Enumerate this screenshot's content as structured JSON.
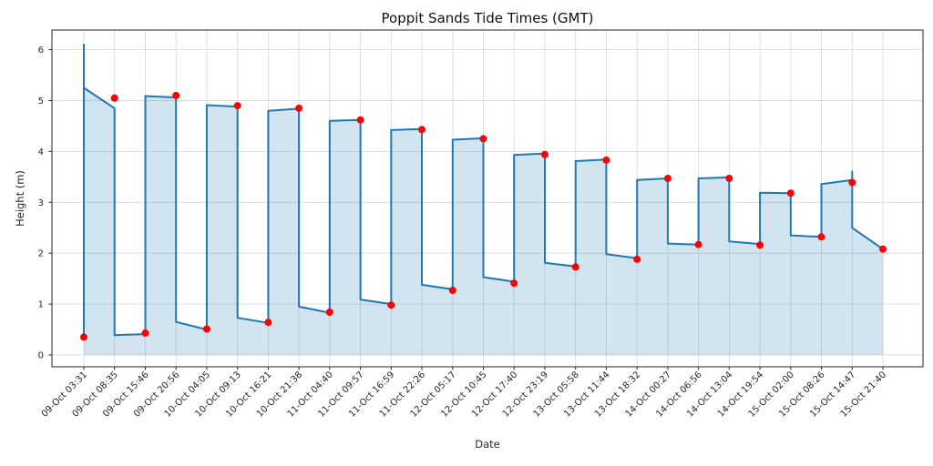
{
  "chart_data": {
    "type": "line",
    "title": "Poppit Sands Tide Times (GMT)",
    "xlabel": "Date",
    "ylabel": "Height (m)",
    "yticks": [
      0,
      1,
      2,
      3,
      4,
      5,
      6
    ],
    "ylim": [
      -0.25,
      6.4
    ],
    "grid": true,
    "legend_position": "none",
    "marker_style": "filled-circle",
    "events": [
      {
        "label": "09-Oct 03:31",
        "height": 0.35,
        "type": "low"
      },
      {
        "label": "09-Oct 08:35",
        "height": 5.05,
        "type": "high"
      },
      {
        "label": "09-Oct 15:46",
        "height": 0.43,
        "type": "low"
      },
      {
        "label": "09-Oct 20:56",
        "height": 5.1,
        "type": "high"
      },
      {
        "label": "10-Oct 04:05",
        "height": 0.51,
        "type": "low"
      },
      {
        "label": "10-Oct 09:13",
        "height": 4.9,
        "type": "high"
      },
      {
        "label": "10-Oct 16:21",
        "height": 0.64,
        "type": "low"
      },
      {
        "label": "10-Oct 21:38",
        "height": 4.85,
        "type": "high"
      },
      {
        "label": "11-Oct 04:40",
        "height": 0.84,
        "type": "low"
      },
      {
        "label": "11-Oct 09:57",
        "height": 4.62,
        "type": "high"
      },
      {
        "label": "11-Oct 16:59",
        "height": 0.98,
        "type": "low"
      },
      {
        "label": "11-Oct 22:26",
        "height": 4.43,
        "type": "high"
      },
      {
        "label": "12-Oct 05:17",
        "height": 1.27,
        "type": "low"
      },
      {
        "label": "12-Oct 10:45",
        "height": 4.25,
        "type": "high"
      },
      {
        "label": "12-Oct 17:40",
        "height": 1.41,
        "type": "low"
      },
      {
        "label": "12-Oct 23:19",
        "height": 3.94,
        "type": "high"
      },
      {
        "label": "13-Oct 05:58",
        "height": 1.73,
        "type": "low"
      },
      {
        "label": "13-Oct 11:44",
        "height": 3.83,
        "type": "high"
      },
      {
        "label": "13-Oct 18:32",
        "height": 1.88,
        "type": "low"
      },
      {
        "label": "14-Oct 00:27",
        "height": 3.47,
        "type": "high"
      },
      {
        "label": "14-Oct 06:56",
        "height": 2.17,
        "type": "low"
      },
      {
        "label": "14-Oct 13:04",
        "height": 3.47,
        "type": "high"
      },
      {
        "label": "14-Oct 19:54",
        "height": 2.16,
        "type": "low"
      },
      {
        "label": "15-Oct 02:00",
        "height": 3.18,
        "type": "high"
      },
      {
        "label": "15-Oct 08:26",
        "height": 2.32,
        "type": "low"
      },
      {
        "label": "15-Oct 14:47",
        "height": 3.39,
        "type": "high"
      },
      {
        "label": "15-Oct 21:40",
        "height": 2.08,
        "type": "low"
      }
    ],
    "line_vertices": [
      [
        0,
        0.35
      ],
      [
        0,
        6.1
      ],
      [
        0,
        5.25
      ],
      [
        1,
        4.85
      ],
      [
        1,
        0.39
      ],
      [
        2,
        0.41
      ],
      [
        2,
        5.09
      ],
      [
        3,
        5.06
      ],
      [
        3,
        0.65
      ],
      [
        4,
        0.5
      ],
      [
        4,
        4.91
      ],
      [
        5,
        4.88
      ],
      [
        5,
        0.73
      ],
      [
        6,
        0.63
      ],
      [
        6,
        4.8
      ],
      [
        7,
        4.84
      ],
      [
        7,
        0.95
      ],
      [
        8,
        0.83
      ],
      [
        8,
        4.6
      ],
      [
        9,
        4.62
      ],
      [
        9,
        1.09
      ],
      [
        10,
        1.0
      ],
      [
        10,
        4.42
      ],
      [
        11,
        4.44
      ],
      [
        11,
        1.38
      ],
      [
        12,
        1.29
      ],
      [
        12,
        4.23
      ],
      [
        13,
        4.26
      ],
      [
        13,
        1.53
      ],
      [
        14,
        1.44
      ],
      [
        14,
        3.93
      ],
      [
        15,
        3.96
      ],
      [
        15,
        1.81
      ],
      [
        16,
        1.74
      ],
      [
        16,
        3.81
      ],
      [
        17,
        3.84
      ],
      [
        17,
        1.98
      ],
      [
        18,
        1.9
      ],
      [
        18,
        3.44
      ],
      [
        19,
        3.47
      ],
      [
        19,
        2.19
      ],
      [
        20,
        2.17
      ],
      [
        20,
        3.47
      ],
      [
        21,
        3.49
      ],
      [
        21,
        2.23
      ],
      [
        22,
        2.18
      ],
      [
        22,
        3.19
      ],
      [
        23,
        3.18
      ],
      [
        23,
        2.35
      ],
      [
        24,
        2.32
      ],
      [
        24,
        3.36
      ],
      [
        25,
        3.44
      ],
      [
        25,
        3.61
      ],
      [
        25,
        2.5
      ],
      [
        26,
        2.08
      ]
    ],
    "colors": {
      "line": "#1f77b4",
      "fill_rgba": "rgba(31,119,180,0.2)",
      "marker": "#ff0000",
      "grid": "#dcdcdc",
      "spine": "#262626",
      "text": "#262626"
    }
  }
}
